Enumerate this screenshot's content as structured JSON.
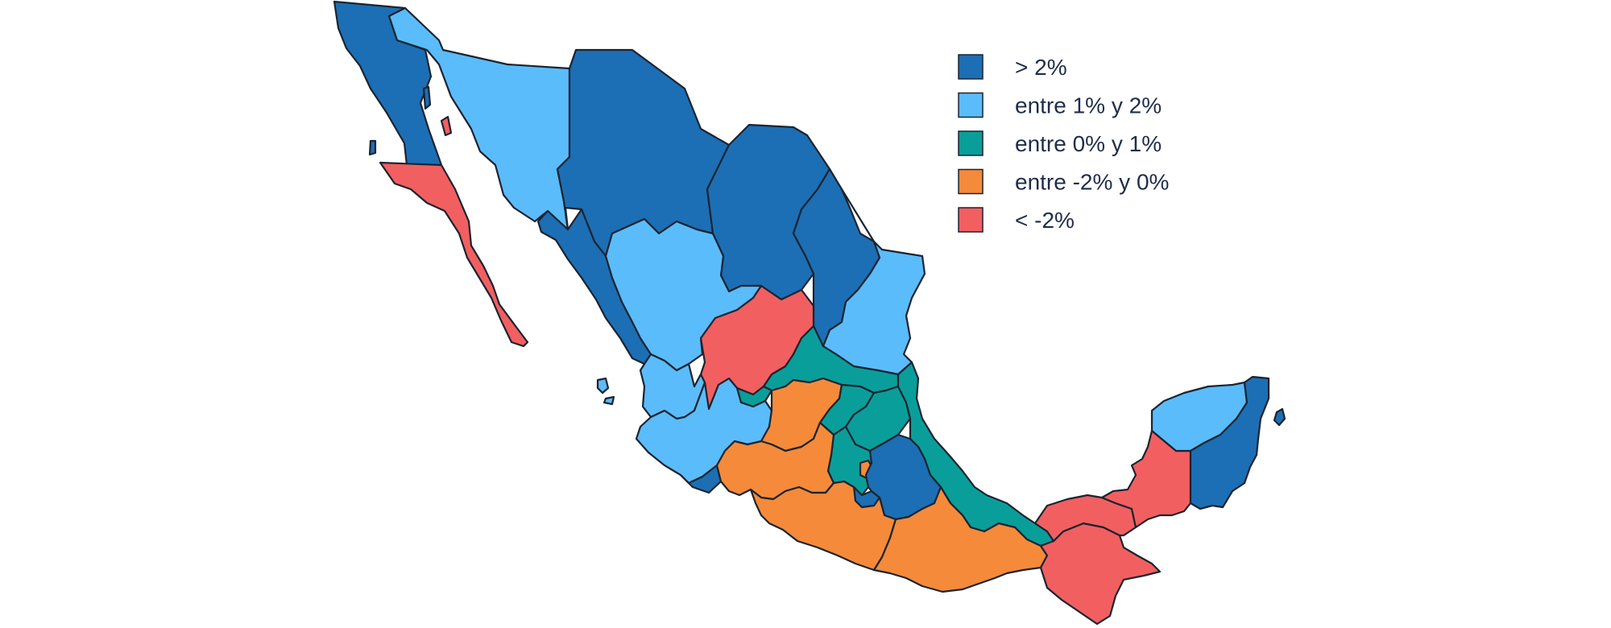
{
  "legend": {
    "items": [
      {
        "label": "> 2%",
        "color": "#1c6fb5"
      },
      {
        "label": "entre 1% y 2%",
        "color": "#5bbcfb"
      },
      {
        "label": "entre 0% y 1%",
        "color": "#0a9e9a"
      },
      {
        "label": "entre -2% y 0%",
        "color": "#f58a3a"
      },
      {
        "label": "< -2%",
        "color": "#f25f61"
      }
    ]
  },
  "regions": [
    {
      "name": "baja-california",
      "class": 0
    },
    {
      "name": "baja-california-sur",
      "class": 4
    },
    {
      "name": "sonora",
      "class": 1
    },
    {
      "name": "chihuahua",
      "class": 0
    },
    {
      "name": "coahuila",
      "class": 0
    },
    {
      "name": "nuevo-leon",
      "class": 0
    },
    {
      "name": "tamaulipas",
      "class": 1
    },
    {
      "name": "sinaloa",
      "class": 0
    },
    {
      "name": "durango",
      "class": 1
    },
    {
      "name": "zacatecas",
      "class": 4
    },
    {
      "name": "san-luis-potosi",
      "class": 2
    },
    {
      "name": "nayarit",
      "class": 1
    },
    {
      "name": "aguascalientes",
      "class": 2
    },
    {
      "name": "jalisco",
      "class": 1
    },
    {
      "name": "colima",
      "class": 0
    },
    {
      "name": "michoacan",
      "class": 3
    },
    {
      "name": "guanajuato",
      "class": 2
    },
    {
      "name": "queretaro",
      "class": 2
    },
    {
      "name": "hidalgo",
      "class": 2
    },
    {
      "name": "veracruz",
      "class": 2
    },
    {
      "name": "estado-de-mexico",
      "class": 3
    },
    {
      "name": "ciudad-de-mexico",
      "class": 0
    },
    {
      "name": "morelos",
      "class": 3
    },
    {
      "name": "puebla",
      "class": 1
    },
    {
      "name": "tlaxcala",
      "class": 0
    },
    {
      "name": "guerrero",
      "class": 3
    },
    {
      "name": "oaxaca",
      "class": 3
    },
    {
      "name": "chiapas",
      "class": 4
    },
    {
      "name": "tabasco",
      "class": 4
    },
    {
      "name": "campeche",
      "class": 4
    },
    {
      "name": "yucatan",
      "class": 1
    },
    {
      "name": "quintana-roo",
      "class": 0
    }
  ]
}
